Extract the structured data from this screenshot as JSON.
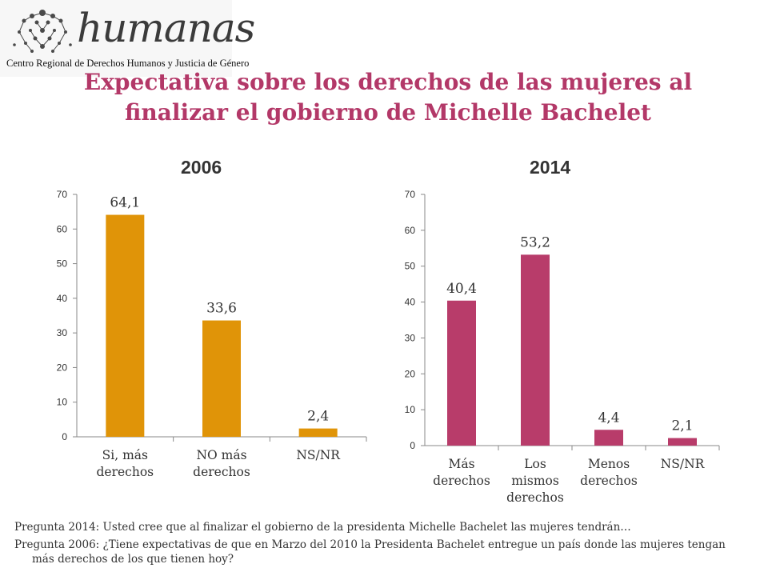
{
  "logo": {
    "name": "humanas",
    "tagline": "Centro Regional de Derechos Humanos y Justicia de Género"
  },
  "title": "Expectativa sobre los derechos de las mujeres al finalizar el gobierno de Michelle Bachelet",
  "colors": {
    "accent": "#b33868",
    "series_2006": "#e09408",
    "series_2014": "#b83c6a"
  },
  "chart_data": [
    {
      "type": "bar",
      "title": "2006",
      "categories": [
        "Si, más derechos",
        "NO más derechos",
        "NS/NR"
      ],
      "values": [
        64.1,
        33.6,
        2.4
      ],
      "value_labels": [
        "64,1",
        "33,6",
        "2,4"
      ],
      "yticks": [
        "0",
        "10",
        "20",
        "30",
        "40",
        "50",
        "60",
        "70"
      ],
      "ylim": [
        0,
        70
      ],
      "grid": false,
      "color": "#e09408"
    },
    {
      "type": "bar",
      "title": "2014",
      "categories": [
        "Más derechos",
        "Los mismos derechos",
        "Menos derechos",
        "NS/NR"
      ],
      "values": [
        40.4,
        53.2,
        4.4,
        2.1
      ],
      "value_labels": [
        "40,4",
        "53,2",
        "4,4",
        "2,1"
      ],
      "yticks": [
        "0",
        "10",
        "20",
        "30",
        "40",
        "50",
        "60",
        "70"
      ],
      "ylim": [
        0,
        70
      ],
      "grid": false,
      "color": "#b83c6a"
    }
  ],
  "footnotes": [
    "Pregunta 2014: Usted cree que al finalizar el gobierno de la presidenta Michelle Bachelet las mujeres tendrán…",
    "Pregunta 2006: ¿Tiene expectativas de que en Marzo del 2010 la Presidenta Bachelet entregue un país donde las mujeres tengan más derechos de los que tienen hoy?"
  ]
}
